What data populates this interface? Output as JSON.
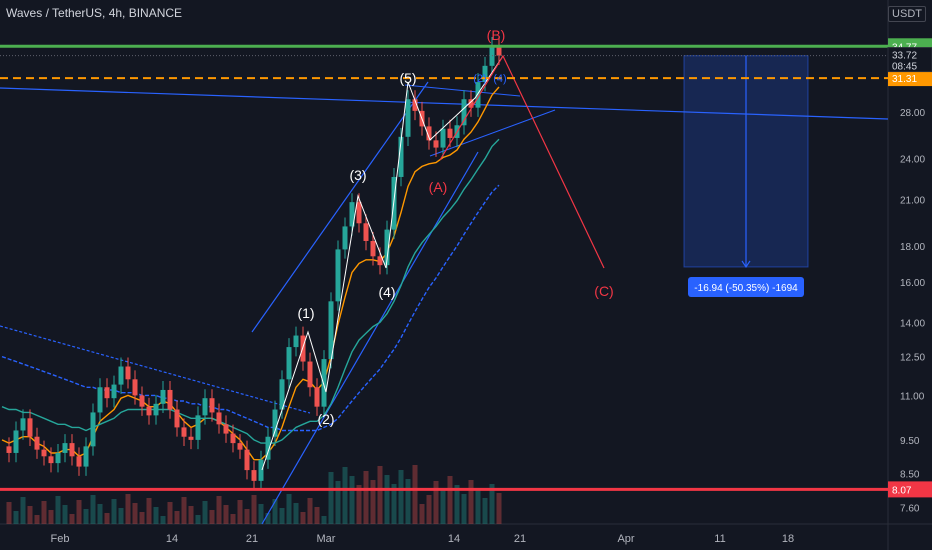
{
  "chart_data": {
    "type": "line",
    "title": "Waves / TetherUS, 4h, BINANCE",
    "unit": "USDT",
    "scale": "log",
    "ylim": [
      7.2,
      40.5
    ],
    "price_axis_ticks": [
      "28.00",
      "24.00",
      "21.00",
      "18.00",
      "16.00",
      "14.00",
      "12.50",
      "11.00",
      "9.50",
      "8.50",
      "7.60"
    ],
    "time_axis_ticks": [
      "Feb",
      "14",
      "21",
      "Mar",
      "14",
      "21",
      "Apr",
      "11",
      "18"
    ],
    "levels": [
      {
        "value": 34.77,
        "label": "34.77",
        "color": "#4caf50",
        "style": "solid"
      },
      {
        "value": 31.31,
        "label": "31.31",
        "color": "#ff9800",
        "style": "dashed"
      },
      {
        "value": 8.07,
        "label": "8.07",
        "color": "#f23645",
        "style": "solid"
      }
    ],
    "current_price": {
      "value": 33.72,
      "label": "33.72",
      "countdown": "08:45"
    },
    "measurement": {
      "label": "-16.94 (-50.35%) -1694",
      "from": 33.7,
      "to": 16.8
    },
    "wave_labels": {
      "impulse": [
        "(1)",
        "(2)",
        "(3)",
        "(4)",
        "(5)"
      ],
      "correction": [
        "(A)",
        "(B)",
        "(C)"
      ],
      "minor": [
        "(2)",
        "(4)"
      ]
    },
    "price_path": [
      9.3,
      9.1,
      9.8,
      10.2,
      9.6,
      9.2,
      9.0,
      8.8,
      9.1,
      9.4,
      9.0,
      8.7,
      9.3,
      10.4,
      11.3,
      10.9,
      11.4,
      12.1,
      11.6,
      11.0,
      10.6,
      10.3,
      10.7,
      11.2,
      10.5,
      9.9,
      9.6,
      9.5,
      10.3,
      10.9,
      10.4,
      10.0,
      9.7,
      9.4,
      9.2,
      8.6,
      8.3,
      8.9,
      9.6,
      10.5,
      11.6,
      12.9,
      13.4,
      12.3,
      11.3,
      10.6,
      12.4,
      15.0,
      17.8,
      19.2,
      20.8,
      19.4,
      18.3,
      17.4,
      16.9,
      19.0,
      22.6,
      25.8,
      29.2,
      28.1,
      26.7,
      25.5,
      24.9,
      26.5,
      25.7,
      26.8,
      29.2,
      28.4,
      30.9,
      32.6,
      34.8,
      33.72
    ],
    "indicator_lines": [
      {
        "name": "",
        "color": "#ff9800",
        "values": [
          9.5,
          9.4,
          9.5,
          9.6,
          9.6,
          9.4,
          9.3,
          9.1,
          9.1,
          9.2,
          9.2,
          9.0,
          9.1,
          9.6,
          10.1,
          10.3,
          10.5,
          10.9,
          11.0,
          10.9,
          10.8,
          10.6,
          10.6,
          10.8,
          10.7,
          10.4,
          10.1,
          9.9,
          10.0,
          10.2,
          10.2,
          10.1,
          9.9,
          9.7,
          9.5,
          9.2,
          8.9,
          8.9,
          9.1,
          9.4,
          9.9,
          10.6,
          11.3,
          11.6,
          11.5,
          11.2,
          11.5,
          12.5,
          13.9,
          15.2,
          16.5,
          17.0,
          17.2,
          17.2,
          17.1,
          17.6,
          18.6,
          20.1,
          21.9,
          23.0,
          23.4,
          23.6,
          23.7,
          24.1,
          24.3,
          24.7,
          25.6,
          26.2,
          27.1,
          28.3,
          29.6,
          30.4
        ]
      },
      {
        "name": "",
        "color": "#26a69a",
        "values": [
          10.6,
          10.5,
          10.5,
          10.4,
          10.4,
          10.3,
          10.2,
          10.1,
          10.0,
          10.0,
          9.9,
          9.9,
          9.8,
          9.9,
          10.0,
          10.1,
          10.2,
          10.4,
          10.5,
          10.5,
          10.5,
          10.5,
          10.5,
          10.5,
          10.5,
          10.4,
          10.3,
          10.2,
          10.2,
          10.2,
          10.2,
          10.1,
          10.0,
          9.9,
          9.8,
          9.7,
          9.5,
          9.4,
          9.4,
          9.4,
          9.5,
          9.7,
          9.9,
          10.0,
          10.1,
          10.1,
          10.3,
          10.7,
          11.3,
          12.0,
          12.7,
          13.2,
          13.5,
          13.8,
          14.0,
          14.4,
          15.0,
          15.8,
          16.8,
          17.6,
          18.2,
          18.7,
          19.2,
          19.8,
          20.3,
          20.9,
          21.7,
          22.4,
          23.2,
          24.0,
          25.0,
          25.6
        ]
      },
      {
        "name": "",
        "color": "#2962ff",
        "values": [
          12.5,
          12.4,
          12.3,
          12.2,
          12.1,
          12.0,
          11.9,
          11.8,
          11.7,
          11.6,
          11.5,
          11.4,
          11.3,
          11.3,
          11.2,
          11.2,
          11.2,
          11.1,
          11.1,
          11.1,
          11.0,
          11.0,
          11.0,
          10.9,
          10.9,
          10.8,
          10.8,
          10.7,
          10.7,
          10.6,
          10.6,
          10.5,
          10.5,
          10.4,
          10.3,
          10.2,
          10.1,
          10.0,
          9.9,
          9.9,
          9.8,
          9.8,
          9.8,
          9.8,
          9.8,
          9.8,
          9.9,
          10.0,
          10.2,
          10.5,
          10.8,
          11.1,
          11.4,
          11.7,
          12.0,
          12.4,
          12.8,
          13.3,
          13.9,
          14.5,
          15.1,
          15.7,
          16.2,
          16.8,
          17.4,
          18.0,
          18.7,
          19.4,
          20.1,
          20.8,
          21.5,
          22.0
        ]
      }
    ]
  }
}
